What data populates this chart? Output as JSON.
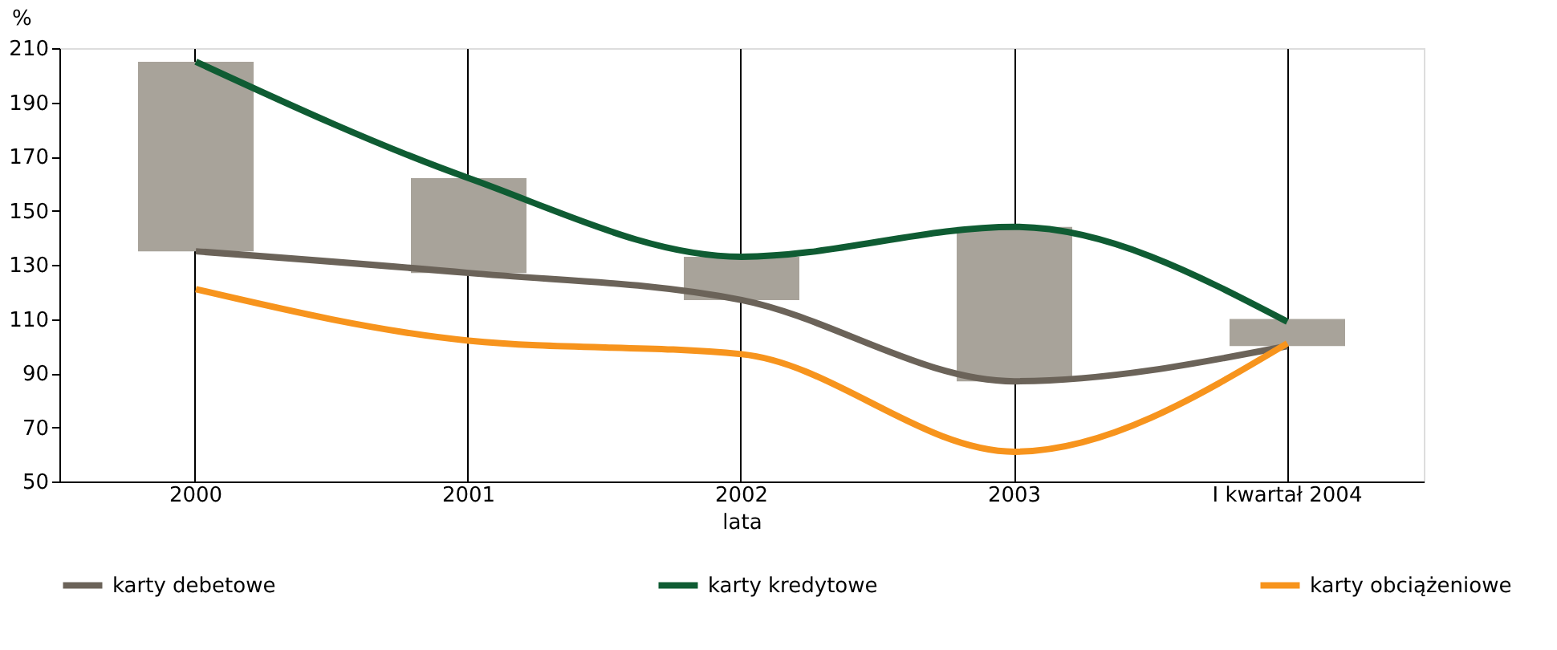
{
  "chart_data": {
    "type": "line",
    "ylabel": "%",
    "xlabel": "lata",
    "categories": [
      "2000",
      "2001",
      "2002",
      "2003",
      "I kwartał 2004"
    ],
    "ylim": [
      50,
      210
    ],
    "yticks": [
      50,
      70,
      90,
      110,
      130,
      150,
      170,
      190,
      210
    ],
    "grid": "x",
    "legend": "bottom",
    "series": [
      {
        "type": "bar",
        "color": "#a8a39a",
        "base": [
          135,
          127,
          117,
          87,
          100
        ],
        "values": [
          70,
          35,
          16,
          57,
          10
        ]
      },
      {
        "name": "karty debetowe",
        "color": "#6b6359",
        "values": [
          135,
          127,
          117,
          87,
          100
        ]
      },
      {
        "name": "karty kredytowe",
        "color": "#0f5c33",
        "values": [
          205,
          162,
          133,
          144,
          109
        ]
      },
      {
        "name": "karty obciążeniowe",
        "color": "#f7941d",
        "values": [
          121,
          102,
          97,
          61,
          101
        ]
      }
    ]
  }
}
